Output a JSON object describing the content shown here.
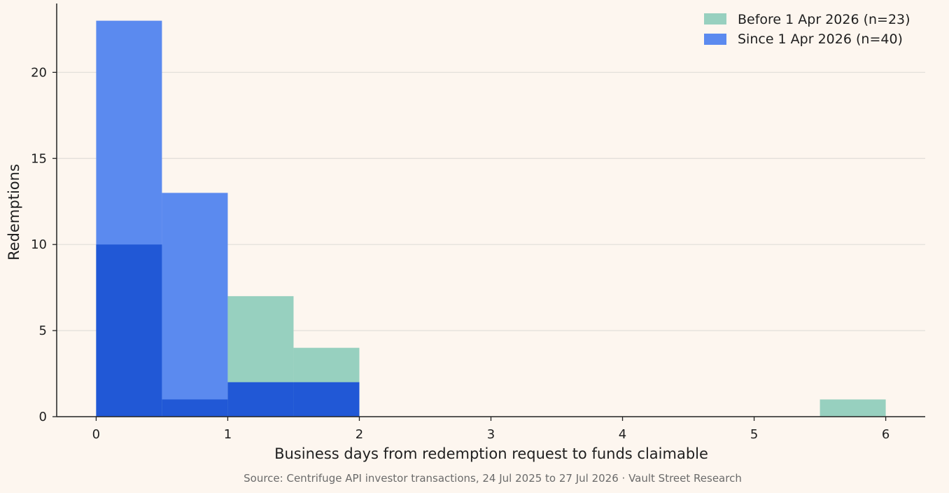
{
  "chart_data": {
    "type": "bar",
    "subtype": "histogram",
    "bin_edges": [
      0,
      0.5,
      1,
      1.5,
      2,
      2.5,
      3,
      3.5,
      4,
      4.5,
      5,
      5.5,
      6
    ],
    "series": [
      {
        "name": "Before 1 Apr 2026 (n=23)",
        "color": "#97d0bf",
        "values": [
          10,
          1,
          7,
          4,
          0,
          0,
          0,
          0,
          0,
          0,
          0,
          1
        ]
      },
      {
        "name": "Since 1 Apr 2026 (n=40)",
        "color": "#5b8aef",
        "values": [
          23,
          13,
          2,
          2,
          0,
          0,
          0,
          0,
          0,
          0,
          0,
          0
        ]
      }
    ],
    "overlap_color": "#2158d6",
    "xlabel": "Business days from redemption request to funds claimable",
    "ylabel": "Redemptions",
    "xlim": [
      -0.3,
      6.3
    ],
    "ylim": [
      0,
      24
    ],
    "x_ticks": [
      0,
      1,
      2,
      3,
      4,
      5,
      6
    ],
    "y_ticks": [
      0,
      5,
      10,
      15,
      20
    ],
    "grid": "horizontal",
    "legend_position": "top-right",
    "source": "Source: Centrifuge API investor transactions, 24 Jul 2025 to 27 Jul 2026 · Vault Street Research"
  }
}
